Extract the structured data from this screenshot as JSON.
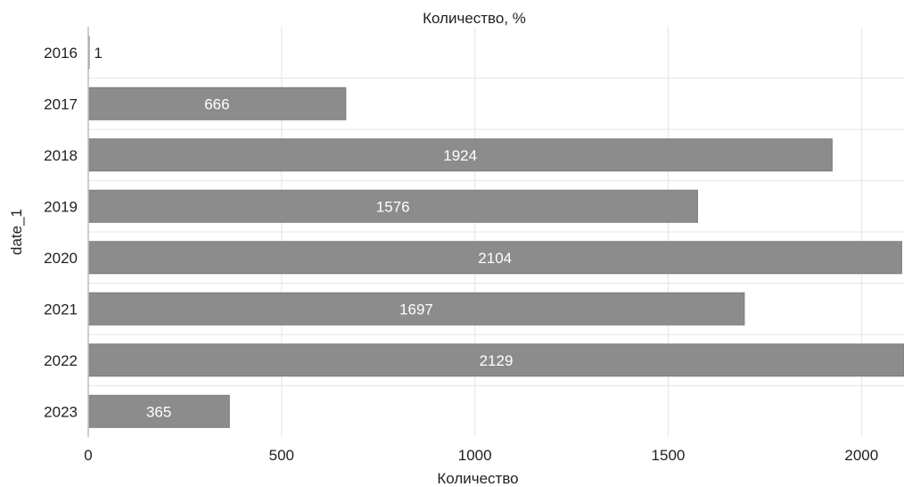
{
  "chart_data": {
    "type": "bar",
    "orientation": "horizontal",
    "title": "Количество, %",
    "xlabel": "Количество",
    "ylabel": "date_1",
    "categories": [
      "2016",
      "2017",
      "2018",
      "2019",
      "2020",
      "2021",
      "2022",
      "2023"
    ],
    "values": [
      1,
      666,
      1924,
      1576,
      2104,
      1697,
      2129,
      365
    ],
    "xlim": [
      0,
      2110
    ],
    "xticks": [
      0,
      500,
      1000,
      1500,
      2000
    ],
    "grid": true,
    "legend": "none",
    "colors": {
      "bar": "#8c8c8c",
      "bar_border": "#7a7a7a",
      "label_inside": "#ffffff",
      "label_outside": "#222222",
      "grid": "#e4e4e4",
      "axis": "#bdbdbd"
    }
  }
}
